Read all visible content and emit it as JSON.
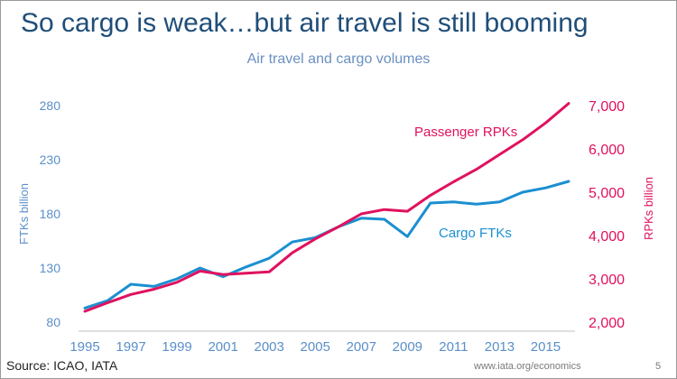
{
  "slide": {
    "headline": "So cargo is weak…but air travel is still booming",
    "source": "Source: ICAO, IATA",
    "url": "www.iata.org/economics",
    "page_number": "5"
  },
  "colors": {
    "headline": "#1f4e79",
    "cargo": "#1b8fd1",
    "passenger": "#e0115f",
    "left_axis": "#5b8fc9",
    "right_axis": "#e0115f",
    "subtitle": "#6a90c0"
  },
  "chart_data": {
    "type": "line",
    "title": "Air travel and cargo volumes",
    "xlabel": "",
    "ylabel_left": "FTKs billion",
    "ylabel_right": "RPKs billion",
    "x_ticks": [
      "1995",
      "1997",
      "1999",
      "2001",
      "2003",
      "2005",
      "2007",
      "2009",
      "2011",
      "2013",
      "2015"
    ],
    "y_left_ticks": [
      "280",
      "230",
      "180",
      "130",
      "80"
    ],
    "y_right_ticks": [
      "7,000",
      "6,000",
      "5,000",
      "4,000",
      "3,000",
      "2,000"
    ],
    "y_left_range": [
      80,
      280
    ],
    "y_right_range": [
      2000,
      7000
    ],
    "x_range": [
      1995,
      2016
    ],
    "grid": false,
    "series": [
      {
        "name": "Cargo FTKs",
        "axis": "left",
        "label": "Cargo FTKs",
        "x": [
          1995,
          1996,
          1997,
          1998,
          1999,
          2000,
          2001,
          2002,
          2003,
          2004,
          2005,
          2006,
          2007,
          2008,
          2009,
          2010,
          2011,
          2012,
          2013,
          2014,
          2015,
          2016
        ],
        "values": [
          93,
          100,
          115,
          113,
          120,
          130,
          122,
          131,
          139,
          154,
          158,
          168,
          176,
          175,
          159,
          190,
          191,
          189,
          191,
          200,
          204,
          210
        ]
      },
      {
        "name": "Passenger RPKs",
        "axis": "right",
        "label": "Passenger RPKs",
        "x": [
          1995,
          1996,
          1997,
          1998,
          1999,
          2000,
          2001,
          2002,
          2003,
          2004,
          2005,
          2006,
          2007,
          2008,
          2009,
          2010,
          2011,
          2012,
          2013,
          2014,
          2015,
          2016
        ],
        "values": [
          2250,
          2450,
          2640,
          2760,
          2920,
          3180,
          3100,
          3130,
          3160,
          3600,
          3920,
          4200,
          4500,
          4600,
          4560,
          4930,
          5240,
          5530,
          5870,
          6210,
          6600,
          7050
        ]
      }
    ]
  }
}
